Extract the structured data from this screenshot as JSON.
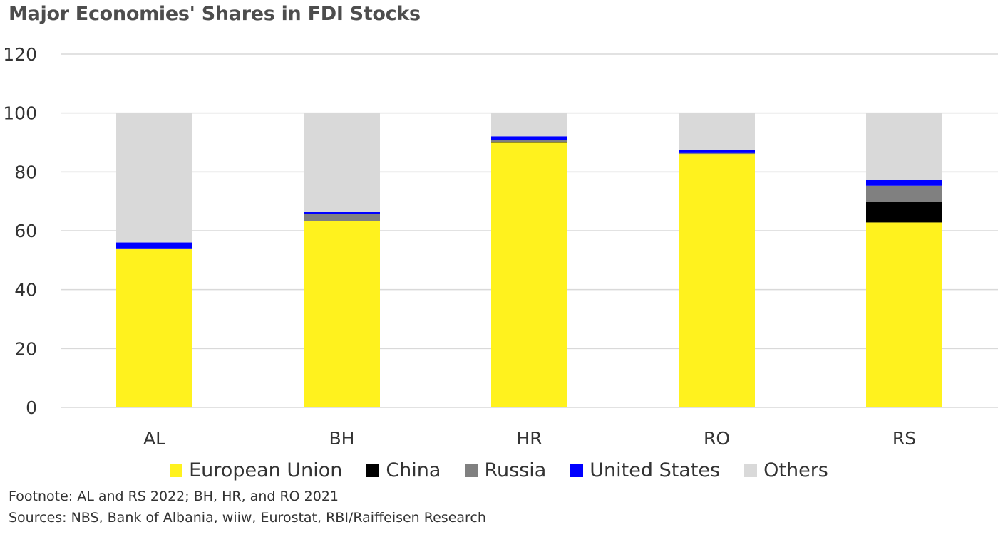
{
  "chart_data": {
    "type": "bar",
    "stacked": true,
    "title": "Major Economies' Shares in FDI Stocks",
    "categories": [
      "AL",
      "BH",
      "HR",
      "RO",
      "RS"
    ],
    "series": [
      {
        "name": "European Union",
        "color": "#fff21e",
        "values": [
          54,
          63.3,
          89.9,
          86.1,
          62.8
        ]
      },
      {
        "name": "China",
        "color": "#000000",
        "values": [
          0,
          0,
          0.1,
          0,
          7
        ]
      },
      {
        "name": "Russia",
        "color": "#808080",
        "values": [
          0,
          2.4,
          0.8,
          0.3,
          5.5
        ]
      },
      {
        "name": "United States",
        "color": "#0000ff",
        "values": [
          2,
          0.8,
          1.3,
          1.2,
          1.9
        ]
      },
      {
        "name": "Others",
        "color": "#d9d9d9",
        "values": [
          44,
          33.5,
          7.9,
          12.4,
          22.8
        ]
      }
    ],
    "yticks": [
      "0",
      "20",
      "40",
      "60",
      "80",
      "100",
      "120"
    ],
    "ylim": [
      0,
      120
    ],
    "grid": true,
    "legend_position": "bottom"
  },
  "footnote": "Footnote: AL and RS 2022; BH, HR, and RO 2021",
  "sources": "Sources:  NBS, Bank of Albania, wiiw, Eurostat, RBI/Raiffeisen Research"
}
